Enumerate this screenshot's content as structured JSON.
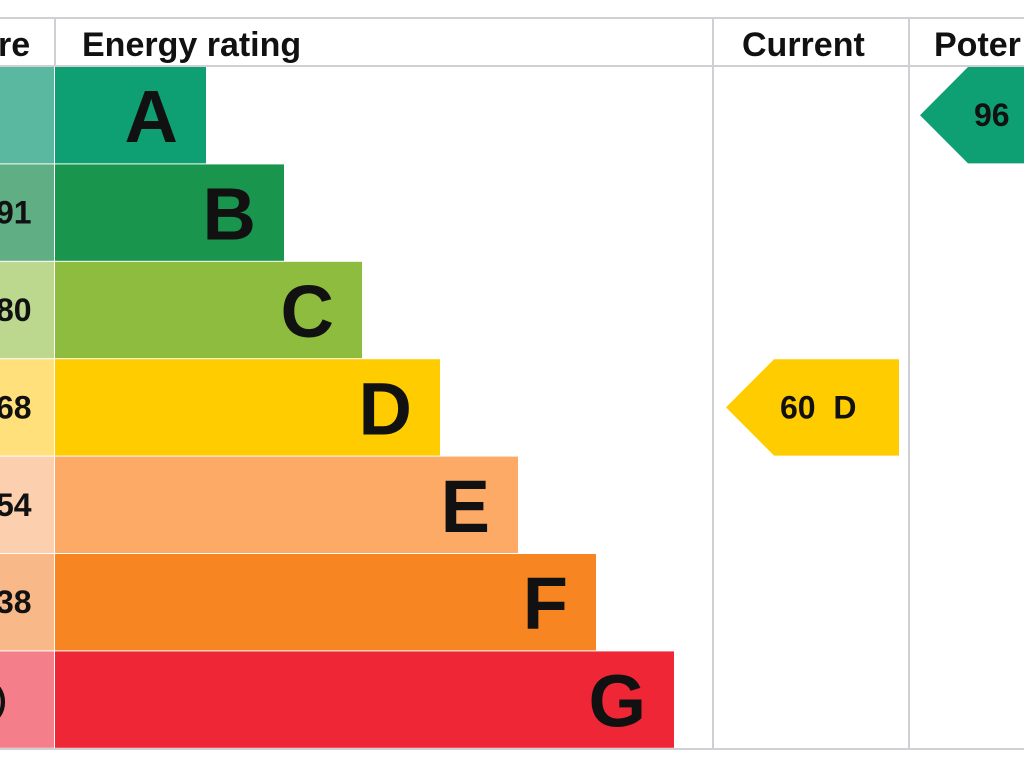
{
  "chart_data": {
    "type": "bar",
    "headers": {
      "score": "re",
      "rating": "Energy rating",
      "current": "Current",
      "potential": "Poter"
    },
    "categories": [
      "A",
      "B",
      "C",
      "D",
      "E",
      "F",
      "G"
    ],
    "score_labels": [
      "",
      "91",
      "80",
      "68",
      "54",
      "38",
      ")"
    ],
    "colors": [
      "#0e9f72",
      "#19954e",
      "#8dbc3e",
      "#ffcc00",
      "#fcaa65",
      "#f68522",
      "#ef2635"
    ],
    "score_colors": [
      "#5bb8a0",
      "#5fae84",
      "#bcd78e",
      "#ffe07a",
      "#fcd0ae",
      "#f9b888",
      "#f47f8a"
    ],
    "current": {
      "value": 60,
      "band": "D",
      "text": "60  D",
      "color": "#ffcc00"
    },
    "potential": {
      "value": 96,
      "band": "A",
      "text": "96",
      "color": "#0e9f72"
    }
  }
}
